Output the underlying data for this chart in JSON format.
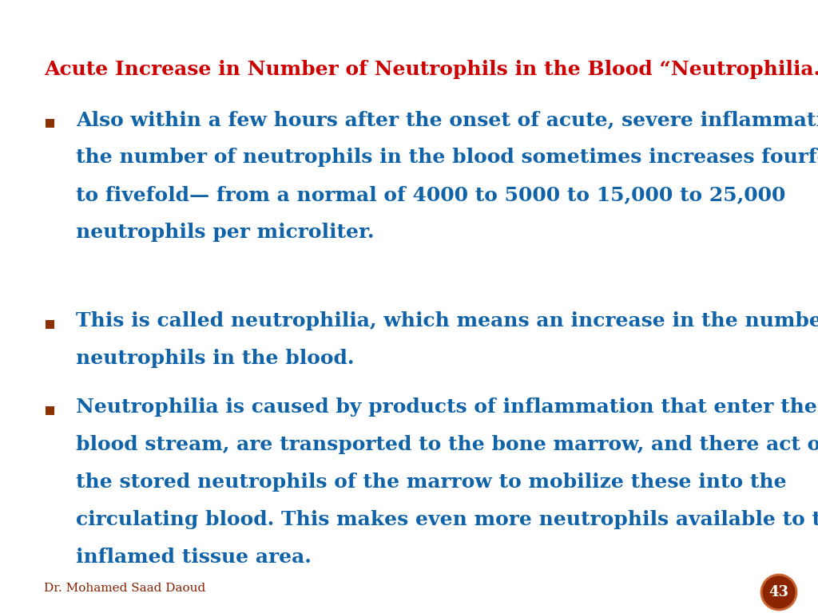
{
  "title": "Acute Increase in Number of Neutrophils in the Blood “Neutrophilia.”",
  "title_color": "#CC0000",
  "title_fontsize": 18,
  "body_color": "#1063A8",
  "body_fontsize": 18,
  "background_color": "#FFFFFF",
  "bullet_color": "#8B3000",
  "footer_text": "Dr. Mohamed Saad Daoud",
  "footer_color": "#8B2000",
  "footer_fontsize": 11,
  "page_number": "43",
  "page_circle_color": "#8B2500",
  "bullets": [
    "Also within a few hours after the onset of acute, severe inflammation,\nthe number of neutrophils in the blood sometimes increases fourfold\nto fivefold— from a normal of 4000 to 5000 to 15,000 to 25,000\nneutrophils per microliter.",
    "This is called neutrophilia, which means an increase in the number of\nneutrophils in the blood.",
    "Neutrophilia is caused by products of inflammation that enter the\nblood stream, are transported to the bone marrow, and there act on\nthe stored neutrophils of the marrow to mobilize these into the\ncirculating blood. This makes even more neutrophils available to the\ninflamed tissue area."
  ]
}
